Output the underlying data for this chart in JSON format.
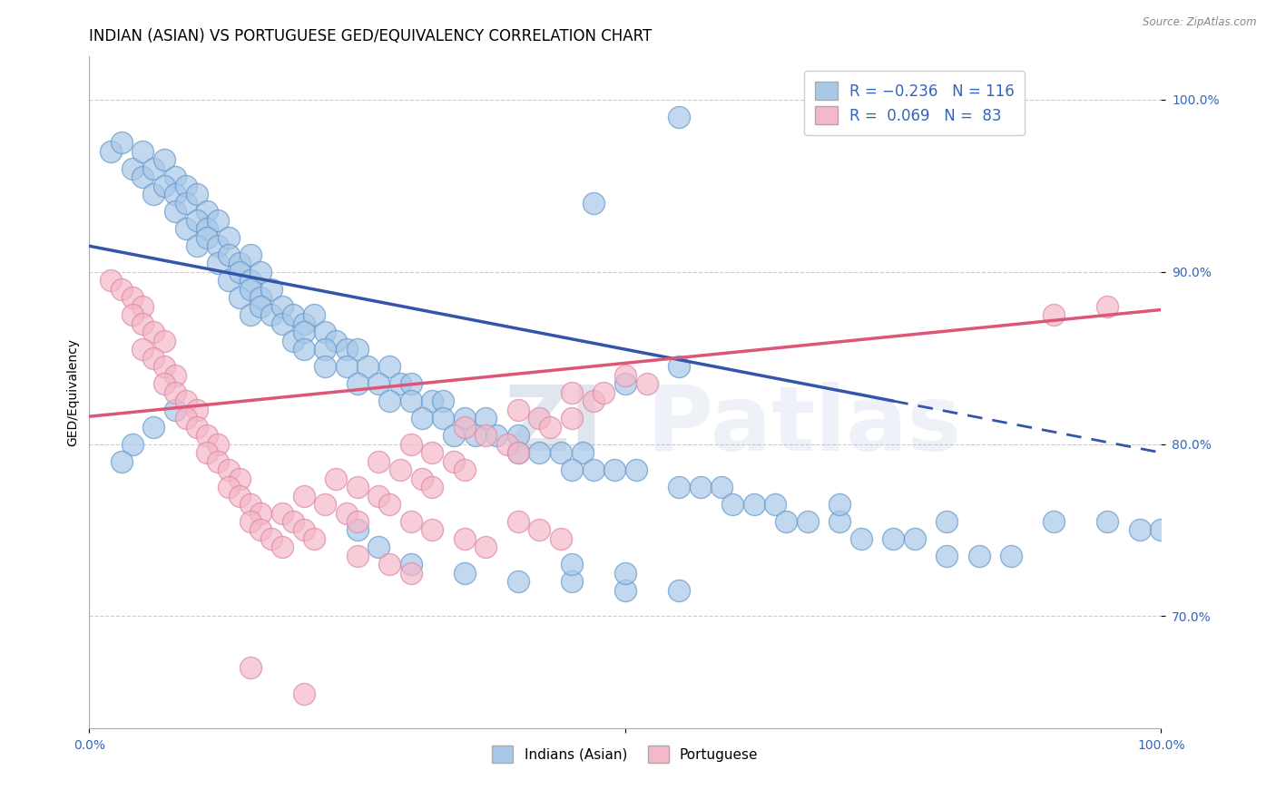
{
  "title": "INDIAN (ASIAN) VS PORTUGUESE GED/EQUIVALENCY CORRELATION CHART",
  "source": "Source: ZipAtlas.com",
  "ylabel": "GED/Equivalency",
  "xlim": [
    0.0,
    1.0
  ],
  "ylim": [
    0.635,
    1.025
  ],
  "yticks": [
    0.7,
    0.8,
    0.9,
    1.0
  ],
  "ytick_labels": [
    "70.0%",
    "80.0%",
    "90.0%",
    "100.0%"
  ],
  "xticks": [
    0.0,
    0.5,
    1.0
  ],
  "xtick_labels": [
    "0.0%",
    "",
    "100.0%"
  ],
  "blue_color": "#a8c8e8",
  "blue_edge_color": "#6699cc",
  "blue_line_color": "#3355aa",
  "pink_color": "#f4b8c8",
  "pink_edge_color": "#dd88aa",
  "pink_line_color": "#dd5577",
  "blue_trend_x": [
    0.0,
    1.0
  ],
  "blue_trend_y_start": 0.915,
  "blue_trend_y_end": 0.795,
  "blue_trend_solid_end": 0.76,
  "pink_trend_x": [
    0.0,
    1.0
  ],
  "pink_trend_y_start": 0.816,
  "pink_trend_y_end": 0.878,
  "watermark_zi": "ZI",
  "watermark_patlas": "Patlas",
  "background_color": "#ffffff",
  "grid_color": "#cccccc",
  "title_fontsize": 12,
  "axis_fontsize": 10,
  "tick_fontsize": 10,
  "blue_scatter": [
    [
      0.02,
      0.97
    ],
    [
      0.03,
      0.975
    ],
    [
      0.04,
      0.96
    ],
    [
      0.05,
      0.97
    ],
    [
      0.05,
      0.955
    ],
    [
      0.06,
      0.96
    ],
    [
      0.07,
      0.965
    ],
    [
      0.08,
      0.955
    ],
    [
      0.06,
      0.945
    ],
    [
      0.07,
      0.95
    ],
    [
      0.08,
      0.945
    ],
    [
      0.09,
      0.95
    ],
    [
      0.08,
      0.935
    ],
    [
      0.09,
      0.94
    ],
    [
      0.1,
      0.945
    ],
    [
      0.11,
      0.935
    ],
    [
      0.09,
      0.925
    ],
    [
      0.1,
      0.93
    ],
    [
      0.11,
      0.925
    ],
    [
      0.12,
      0.93
    ],
    [
      0.1,
      0.915
    ],
    [
      0.11,
      0.92
    ],
    [
      0.12,
      0.915
    ],
    [
      0.13,
      0.92
    ],
    [
      0.12,
      0.905
    ],
    [
      0.13,
      0.91
    ],
    [
      0.14,
      0.905
    ],
    [
      0.15,
      0.91
    ],
    [
      0.13,
      0.895
    ],
    [
      0.14,
      0.9
    ],
    [
      0.15,
      0.895
    ],
    [
      0.16,
      0.9
    ],
    [
      0.14,
      0.885
    ],
    [
      0.15,
      0.89
    ],
    [
      0.16,
      0.885
    ],
    [
      0.17,
      0.89
    ],
    [
      0.15,
      0.875
    ],
    [
      0.16,
      0.88
    ],
    [
      0.17,
      0.875
    ],
    [
      0.18,
      0.88
    ],
    [
      0.18,
      0.87
    ],
    [
      0.19,
      0.875
    ],
    [
      0.2,
      0.87
    ],
    [
      0.21,
      0.875
    ],
    [
      0.19,
      0.86
    ],
    [
      0.2,
      0.865
    ],
    [
      0.22,
      0.865
    ],
    [
      0.23,
      0.86
    ],
    [
      0.2,
      0.855
    ],
    [
      0.22,
      0.855
    ],
    [
      0.24,
      0.855
    ],
    [
      0.25,
      0.855
    ],
    [
      0.22,
      0.845
    ],
    [
      0.24,
      0.845
    ],
    [
      0.26,
      0.845
    ],
    [
      0.28,
      0.845
    ],
    [
      0.25,
      0.835
    ],
    [
      0.27,
      0.835
    ],
    [
      0.29,
      0.835
    ],
    [
      0.3,
      0.835
    ],
    [
      0.28,
      0.825
    ],
    [
      0.3,
      0.825
    ],
    [
      0.32,
      0.825
    ],
    [
      0.33,
      0.825
    ],
    [
      0.31,
      0.815
    ],
    [
      0.33,
      0.815
    ],
    [
      0.35,
      0.815
    ],
    [
      0.37,
      0.815
    ],
    [
      0.34,
      0.805
    ],
    [
      0.36,
      0.805
    ],
    [
      0.38,
      0.805
    ],
    [
      0.4,
      0.805
    ],
    [
      0.4,
      0.795
    ],
    [
      0.42,
      0.795
    ],
    [
      0.44,
      0.795
    ],
    [
      0.46,
      0.795
    ],
    [
      0.45,
      0.785
    ],
    [
      0.47,
      0.785
    ],
    [
      0.49,
      0.785
    ],
    [
      0.51,
      0.785
    ],
    [
      0.5,
      0.835
    ],
    [
      0.55,
      0.845
    ],
    [
      0.55,
      0.775
    ],
    [
      0.57,
      0.775
    ],
    [
      0.59,
      0.775
    ],
    [
      0.6,
      0.765
    ],
    [
      0.62,
      0.765
    ],
    [
      0.64,
      0.765
    ],
    [
      0.65,
      0.755
    ],
    [
      0.67,
      0.755
    ],
    [
      0.7,
      0.755
    ],
    [
      0.72,
      0.745
    ],
    [
      0.75,
      0.745
    ],
    [
      0.77,
      0.745
    ],
    [
      0.8,
      0.735
    ],
    [
      0.83,
      0.735
    ],
    [
      0.86,
      0.735
    ],
    [
      0.7,
      0.765
    ],
    [
      0.8,
      0.755
    ],
    [
      0.55,
      0.99
    ],
    [
      0.47,
      0.94
    ],
    [
      0.25,
      0.75
    ],
    [
      0.27,
      0.74
    ],
    [
      0.3,
      0.73
    ],
    [
      0.35,
      0.725
    ],
    [
      0.4,
      0.72
    ],
    [
      0.45,
      0.72
    ],
    [
      0.5,
      0.715
    ],
    [
      0.55,
      0.715
    ],
    [
      0.45,
      0.73
    ],
    [
      0.5,
      0.725
    ],
    [
      0.08,
      0.82
    ],
    [
      0.06,
      0.81
    ],
    [
      0.04,
      0.8
    ],
    [
      0.03,
      0.79
    ],
    [
      0.9,
      0.755
    ],
    [
      0.95,
      0.755
    ],
    [
      0.98,
      0.75
    ],
    [
      1.0,
      0.75
    ]
  ],
  "pink_scatter": [
    [
      0.02,
      0.895
    ],
    [
      0.03,
      0.89
    ],
    [
      0.04,
      0.885
    ],
    [
      0.05,
      0.88
    ],
    [
      0.04,
      0.875
    ],
    [
      0.05,
      0.87
    ],
    [
      0.06,
      0.865
    ],
    [
      0.07,
      0.86
    ],
    [
      0.05,
      0.855
    ],
    [
      0.06,
      0.85
    ],
    [
      0.07,
      0.845
    ],
    [
      0.08,
      0.84
    ],
    [
      0.07,
      0.835
    ],
    [
      0.08,
      0.83
    ],
    [
      0.09,
      0.825
    ],
    [
      0.1,
      0.82
    ],
    [
      0.09,
      0.815
    ],
    [
      0.1,
      0.81
    ],
    [
      0.11,
      0.805
    ],
    [
      0.12,
      0.8
    ],
    [
      0.11,
      0.795
    ],
    [
      0.12,
      0.79
    ],
    [
      0.13,
      0.785
    ],
    [
      0.14,
      0.78
    ],
    [
      0.13,
      0.775
    ],
    [
      0.14,
      0.77
    ],
    [
      0.15,
      0.765
    ],
    [
      0.16,
      0.76
    ],
    [
      0.15,
      0.755
    ],
    [
      0.16,
      0.75
    ],
    [
      0.17,
      0.745
    ],
    [
      0.18,
      0.74
    ],
    [
      0.18,
      0.76
    ],
    [
      0.19,
      0.755
    ],
    [
      0.2,
      0.75
    ],
    [
      0.21,
      0.745
    ],
    [
      0.2,
      0.77
    ],
    [
      0.22,
      0.765
    ],
    [
      0.24,
      0.76
    ],
    [
      0.25,
      0.755
    ],
    [
      0.23,
      0.78
    ],
    [
      0.25,
      0.775
    ],
    [
      0.27,
      0.77
    ],
    [
      0.28,
      0.765
    ],
    [
      0.27,
      0.79
    ],
    [
      0.29,
      0.785
    ],
    [
      0.31,
      0.78
    ],
    [
      0.32,
      0.775
    ],
    [
      0.3,
      0.8
    ],
    [
      0.32,
      0.795
    ],
    [
      0.34,
      0.79
    ],
    [
      0.35,
      0.785
    ],
    [
      0.35,
      0.81
    ],
    [
      0.37,
      0.805
    ],
    [
      0.39,
      0.8
    ],
    [
      0.4,
      0.795
    ],
    [
      0.4,
      0.82
    ],
    [
      0.42,
      0.815
    ],
    [
      0.43,
      0.81
    ],
    [
      0.45,
      0.815
    ],
    [
      0.45,
      0.83
    ],
    [
      0.47,
      0.825
    ],
    [
      0.48,
      0.83
    ],
    [
      0.5,
      0.84
    ],
    [
      0.52,
      0.835
    ],
    [
      0.3,
      0.755
    ],
    [
      0.32,
      0.75
    ],
    [
      0.35,
      0.745
    ],
    [
      0.37,
      0.74
    ],
    [
      0.4,
      0.755
    ],
    [
      0.42,
      0.75
    ],
    [
      0.44,
      0.745
    ],
    [
      0.25,
      0.735
    ],
    [
      0.28,
      0.73
    ],
    [
      0.3,
      0.725
    ],
    [
      0.9,
      0.875
    ],
    [
      0.95,
      0.88
    ],
    [
      0.15,
      0.67
    ],
    [
      0.2,
      0.655
    ]
  ]
}
